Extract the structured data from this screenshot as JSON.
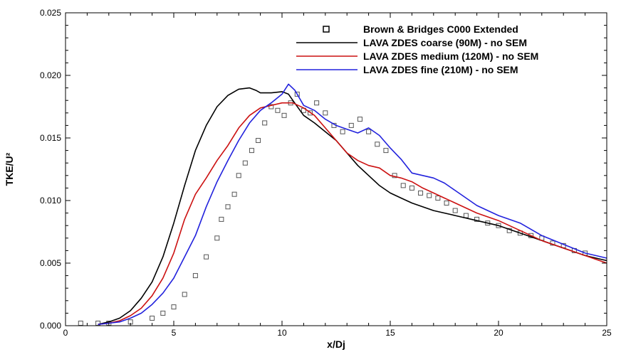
{
  "chart_data": {
    "type": "line",
    "title": "",
    "xlabel": "x/Dj",
    "ylabel": "TKE/U²",
    "xlim": [
      0,
      25
    ],
    "ylim": [
      0,
      0.025
    ],
    "xticks": [
      0,
      5,
      10,
      15,
      20,
      25
    ],
    "yticks": [
      0.0,
      0.005,
      0.01,
      0.015,
      0.02,
      0.025
    ],
    "xtick_labels": [
      "0",
      "5",
      "10",
      "15",
      "20",
      "25"
    ],
    "ytick_labels": [
      "0.000",
      "0.005",
      "0.010",
      "0.015",
      "0.020",
      "0.025"
    ],
    "grid": false,
    "legend_position": "top-right",
    "series": [
      {
        "name": "Brown & Bridges C000 Extended",
        "style": "markers",
        "color": "#555555",
        "x": [
          0.7,
          1.5,
          2,
          3,
          4,
          4.5,
          5,
          5.5,
          6,
          6.5,
          7,
          7.2,
          7.5,
          7.8,
          8,
          8.3,
          8.6,
          8.9,
          9.2,
          9.5,
          9.8,
          10.1,
          10.4,
          10.7,
          11,
          11.3,
          11.6,
          12,
          12.4,
          12.8,
          13.2,
          13.6,
          14,
          14.4,
          14.8,
          15.2,
          15.6,
          16,
          16.4,
          16.8,
          17.2,
          17.6,
          18,
          18.5,
          19,
          19.5,
          20,
          20.5,
          21,
          21.5,
          22,
          22.5,
          23,
          23.5,
          24
        ],
        "y": [
          0.0002,
          0.0002,
          0.0002,
          0.0003,
          0.0006,
          0.001,
          0.0015,
          0.0025,
          0.004,
          0.0055,
          0.007,
          0.0085,
          0.0095,
          0.0105,
          0.012,
          0.013,
          0.014,
          0.0148,
          0.0162,
          0.0175,
          0.0172,
          0.0168,
          0.0178,
          0.0185,
          0.0172,
          0.017,
          0.0178,
          0.017,
          0.016,
          0.0155,
          0.016,
          0.0165,
          0.0155,
          0.0145,
          0.014,
          0.012,
          0.0112,
          0.011,
          0.0106,
          0.0104,
          0.0102,
          0.0098,
          0.0092,
          0.0088,
          0.0085,
          0.0082,
          0.008,
          0.0076,
          0.0074,
          0.0072,
          0.007,
          0.0066,
          0.0064,
          0.006,
          0.0058
        ]
      },
      {
        "name": "LAVA ZDES coarse (90M) - no SEM",
        "style": "line",
        "color": "#000000",
        "x": [
          1.5,
          2,
          2.5,
          3,
          3.5,
          4,
          4.5,
          5,
          5.5,
          6,
          6.5,
          7,
          7.5,
          8,
          8.5,
          8.8,
          9,
          9.5,
          10,
          10.3,
          10.5,
          11,
          11.5,
          12,
          12.5,
          13,
          13.5,
          14,
          14.5,
          15,
          15.5,
          16,
          17,
          18,
          19,
          20,
          21,
          22,
          23,
          24,
          25
        ],
        "y": [
          0.0001,
          0.0003,
          0.0006,
          0.0012,
          0.0022,
          0.0035,
          0.0055,
          0.0082,
          0.0112,
          0.014,
          0.016,
          0.0175,
          0.0184,
          0.0189,
          0.019,
          0.0188,
          0.0186,
          0.0186,
          0.0187,
          0.0185,
          0.018,
          0.0168,
          0.0162,
          0.0155,
          0.0148,
          0.0138,
          0.0128,
          0.012,
          0.0112,
          0.0106,
          0.0102,
          0.0098,
          0.0092,
          0.0088,
          0.0084,
          0.008,
          0.0074,
          0.0068,
          0.0062,
          0.0056,
          0.0052
        ]
      },
      {
        "name": "LAVA ZDES medium (120M) - no SEM",
        "style": "line",
        "color": "#cc1111",
        "x": [
          1.5,
          2,
          2.5,
          3,
          3.5,
          4,
          4.5,
          5,
          5.5,
          6,
          6.5,
          7,
          7.5,
          8,
          8.5,
          9,
          9.5,
          10,
          10.5,
          11,
          11.5,
          12,
          12.5,
          13,
          13.5,
          14,
          14.5,
          15,
          15.5,
          16,
          16.5,
          17,
          17.5,
          18,
          19,
          20,
          21,
          22,
          23,
          24,
          25
        ],
        "y": [
          0.0001,
          0.0002,
          0.0004,
          0.0008,
          0.0014,
          0.0024,
          0.0038,
          0.0058,
          0.0085,
          0.0105,
          0.0118,
          0.0132,
          0.0144,
          0.0158,
          0.0168,
          0.0174,
          0.0176,
          0.0178,
          0.0178,
          0.0174,
          0.0168,
          0.0158,
          0.0148,
          0.0138,
          0.0132,
          0.0128,
          0.0126,
          0.012,
          0.0118,
          0.0115,
          0.011,
          0.0106,
          0.0102,
          0.0098,
          0.009,
          0.0084,
          0.0076,
          0.0068,
          0.0062,
          0.0056,
          0.005
        ]
      },
      {
        "name": "LAVA ZDES fine (210M) - no SEM",
        "style": "line",
        "color": "#2222dd",
        "x": [
          1.5,
          2,
          2.5,
          3,
          3.5,
          4,
          4.5,
          5,
          5.5,
          6,
          6.5,
          7,
          7.5,
          8,
          8.5,
          9,
          9.5,
          10,
          10.3,
          10.6,
          11,
          11.5,
          12,
          12.5,
          13,
          13.5,
          14,
          14.5,
          15,
          15.5,
          16,
          16.5,
          17,
          17.5,
          18,
          19,
          20,
          21,
          22,
          23,
          24,
          25
        ],
        "y": [
          0.0001,
          0.0002,
          0.0003,
          0.0006,
          0.001,
          0.0017,
          0.0026,
          0.0038,
          0.0055,
          0.0072,
          0.0095,
          0.0115,
          0.0132,
          0.0148,
          0.0162,
          0.0172,
          0.0178,
          0.0185,
          0.0193,
          0.0188,
          0.0176,
          0.0172,
          0.0165,
          0.016,
          0.0157,
          0.0154,
          0.0158,
          0.0152,
          0.0142,
          0.0133,
          0.0122,
          0.012,
          0.0118,
          0.0114,
          0.0108,
          0.0096,
          0.0088,
          0.0082,
          0.0072,
          0.0065,
          0.0058,
          0.0054
        ]
      }
    ]
  }
}
